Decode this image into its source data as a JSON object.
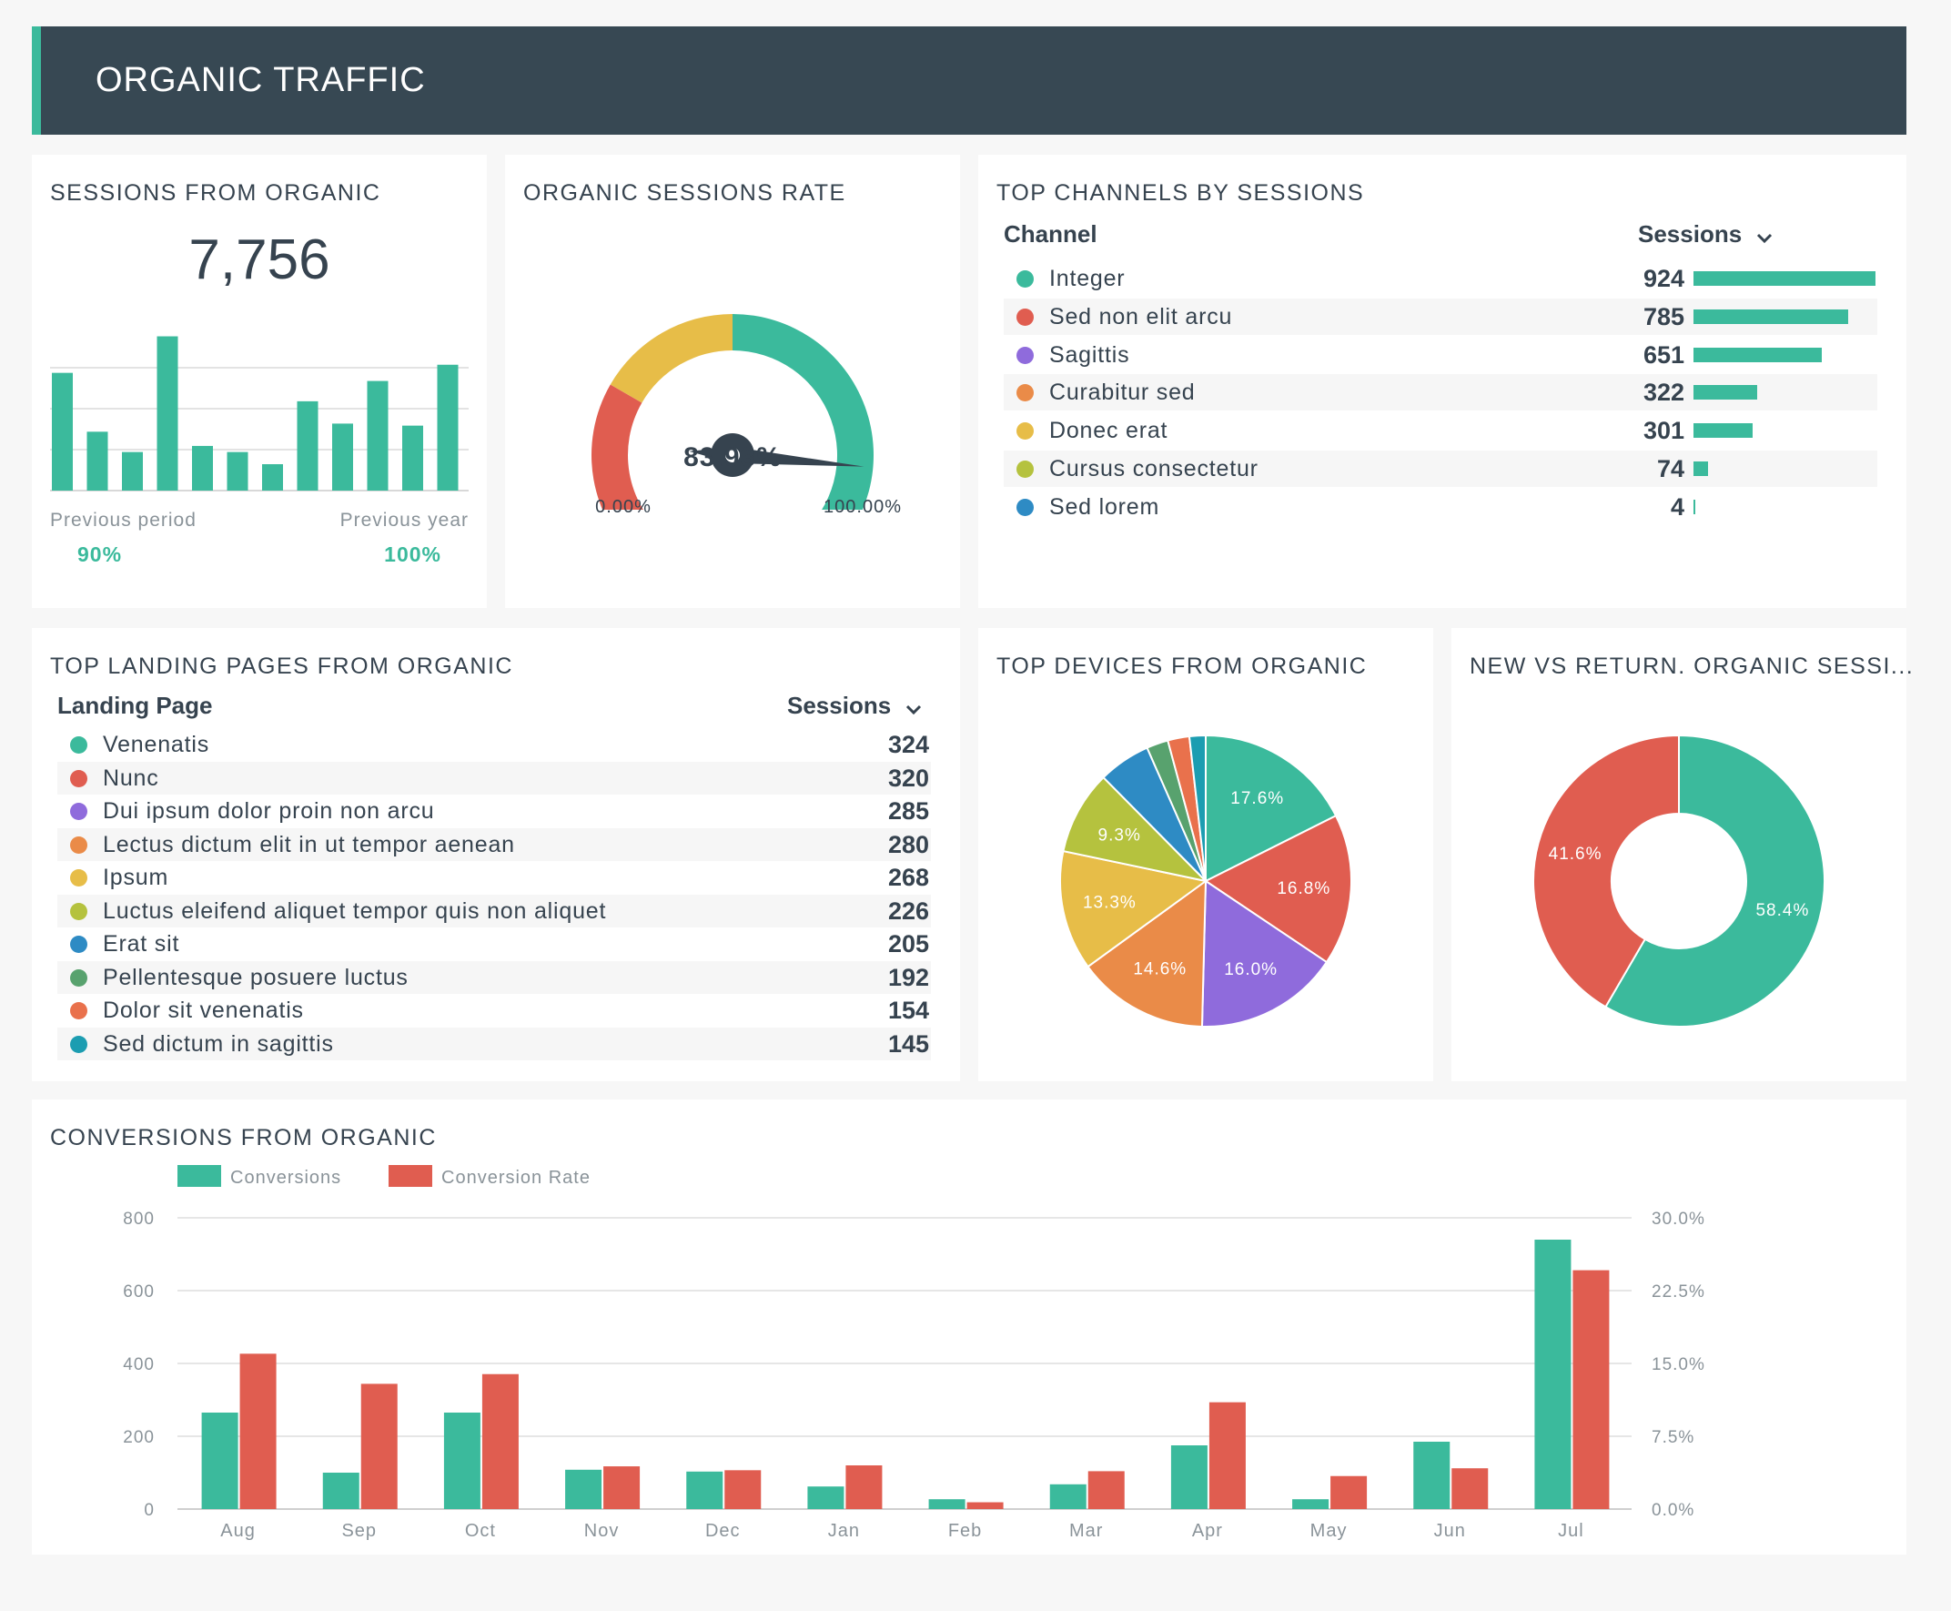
{
  "header": {
    "title": "ORGANIC TRAFFIC"
  },
  "colors": {
    "teal": "#3bba9c",
    "red": "#e05d50",
    "purple": "#8f6bdc",
    "orange": "#ea8b48",
    "yellow": "#e7bd48",
    "lime": "#b5c23e",
    "blue": "#2e8bc4",
    "green": "#58a26e",
    "orange_red": "#e9714c",
    "cyan": "#1c9db1"
  },
  "sessions": {
    "title": "SESSIONS FROM ORGANIC",
    "value": "7,756",
    "sparkline": [
      5.8,
      2.9,
      1.9,
      7.6,
      2.2,
      1.9,
      1.3,
      4.4,
      3.3,
      5.4,
      3.2,
      6.2
    ],
    "prev_period_label": "Previous period",
    "prev_period_value": "90%",
    "prev_year_label": "Previous year",
    "prev_year_value": "100%"
  },
  "rate": {
    "title": "ORGANIC SESSIONS RATE",
    "value": "83.93%",
    "value_num": 83.93,
    "min_label": "0.00%",
    "max_label": "100.00%"
  },
  "channels": {
    "title": "TOP CHANNELS BY SESSIONS",
    "col_channel": "Channel",
    "col_sessions": "Sessions",
    "rows": [
      {
        "name": "Integer",
        "value": "924",
        "num": 924,
        "color": "#3bba9c"
      },
      {
        "name": "Sed non elit arcu",
        "value": "785",
        "num": 785,
        "color": "#e05d50"
      },
      {
        "name": "Sagittis",
        "value": "651",
        "num": 651,
        "color": "#8f6bdc"
      },
      {
        "name": "Curabitur sed",
        "value": "322",
        "num": 322,
        "color": "#ea8b48"
      },
      {
        "name": "Donec erat",
        "value": "301",
        "num": 301,
        "color": "#e7bd48"
      },
      {
        "name": "Cursus consectetur",
        "value": "74",
        "num": 74,
        "color": "#b5c23e"
      },
      {
        "name": "Sed lorem",
        "value": "4",
        "num": 4,
        "color": "#2e8bc4"
      }
    ]
  },
  "landing": {
    "title": "TOP LANDING PAGES FROM ORGANIC",
    "col_page": "Landing Page",
    "col_sessions": "Sessions",
    "rows": [
      {
        "name": "Venenatis",
        "value": "324",
        "color": "#3bba9c"
      },
      {
        "name": "Nunc",
        "value": "320",
        "color": "#e05d50"
      },
      {
        "name": "Dui ipsum dolor proin non arcu",
        "value": "285",
        "color": "#8f6bdc"
      },
      {
        "name": "Lectus dictum elit in ut tempor aenean",
        "value": "280",
        "color": "#ea8b48"
      },
      {
        "name": "Ipsum",
        "value": "268",
        "color": "#e7bd48"
      },
      {
        "name": "Luctus eleifend aliquet tempor quis non aliquet",
        "value": "226",
        "color": "#b5c23e"
      },
      {
        "name": "Erat sit",
        "value": "205",
        "color": "#2e8bc4"
      },
      {
        "name": "Pellentesque posuere luctus",
        "value": "192",
        "color": "#58a26e"
      },
      {
        "name": "Dolor sit venenatis",
        "value": "154",
        "color": "#e9714c"
      },
      {
        "name": "Sed dictum in sagittis",
        "value": "145",
        "color": "#1c9db1"
      }
    ]
  },
  "devices": {
    "title": "TOP DEVICES FROM ORGANIC",
    "slices": [
      {
        "label": "17.6%",
        "value": 17.6,
        "color": "#3bba9c"
      },
      {
        "label": "16.8%",
        "value": 16.8,
        "color": "#e05d50"
      },
      {
        "label": "16.0%",
        "value": 16.0,
        "color": "#8f6bdc"
      },
      {
        "label": "14.6%",
        "value": 14.6,
        "color": "#ea8b48"
      },
      {
        "label": "13.3%",
        "value": 13.3,
        "color": "#e7bd48"
      },
      {
        "label": "9.3%",
        "value": 9.3,
        "color": "#b5c23e"
      },
      {
        "label": "",
        "value": 5.8,
        "color": "#2e8bc4"
      },
      {
        "label": "",
        "value": 2.4,
        "color": "#58a26e"
      },
      {
        "label": "",
        "value": 2.4,
        "color": "#e9714c"
      },
      {
        "label": "",
        "value": 1.8,
        "color": "#1c9db1"
      }
    ]
  },
  "newret": {
    "title": "NEW VS RETURN. ORGANIC SESSI...",
    "slices": [
      {
        "label": "58.4%",
        "value": 58.4,
        "color": "#3bba9c"
      },
      {
        "label": "41.6%",
        "value": 41.6,
        "color": "#e05d50"
      }
    ]
  },
  "conversions": {
    "title": "CONVERSIONS FROM ORGANIC",
    "legend": [
      "Conversions",
      "Conversion Rate"
    ],
    "left_ticks": [
      "800",
      "600",
      "400",
      "200",
      "0"
    ],
    "right_ticks": [
      "30.0%",
      "22.5%",
      "15.0%",
      "7.5%",
      "0.0%"
    ]
  },
  "chart_data": [
    {
      "type": "bar",
      "title": "SESSIONS FROM ORGANIC",
      "values": [
        5.8,
        2.9,
        1.9,
        7.6,
        2.2,
        1.9,
        1.3,
        4.4,
        3.3,
        5.4,
        3.2,
        6.2
      ]
    },
    {
      "type": "pie",
      "title": "TOP DEVICES FROM ORGANIC",
      "values": [
        17.6,
        16.8,
        16.0,
        14.6,
        13.3,
        9.3,
        5.8,
        2.4,
        2.4,
        1.8
      ]
    },
    {
      "type": "pie",
      "title": "NEW VS RETURN. ORGANIC SESSI...",
      "values": [
        58.4,
        41.6
      ]
    },
    {
      "type": "bar",
      "title": "CONVERSIONS FROM ORGANIC",
      "categories": [
        "Aug",
        "Sep",
        "Oct",
        "Nov",
        "Dec",
        "Jan",
        "Feb",
        "Mar",
        "Apr",
        "May",
        "Jun",
        "Jul"
      ],
      "series": [
        {
          "name": "Conversions",
          "axis": "left",
          "values": [
            265,
            100,
            265,
            108,
            103,
            62,
            27,
            68,
            175,
            27,
            185,
            740
          ]
        },
        {
          "name": "Conversion Rate",
          "axis": "right",
          "values": [
            16.0,
            12.9,
            13.9,
            4.4,
            4.0,
            4.5,
            0.7,
            3.9,
            11.0,
            3.4,
            4.2,
            24.6
          ]
        }
      ],
      "ylim": [
        0,
        800
      ],
      "ylim_right": [
        0,
        30
      ]
    }
  ]
}
